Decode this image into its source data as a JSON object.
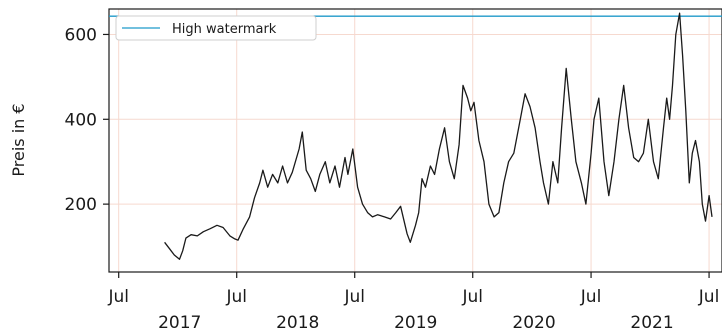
{
  "chart_data": {
    "type": "line",
    "ylabel": "Preis in €",
    "xlabel": "",
    "ylim": [
      40,
      660
    ],
    "xlim": [
      "2016-06-01",
      "2021-08-10"
    ],
    "grid": true,
    "legend_position": "top-left",
    "colors": {
      "price_line": "#1a1a1a",
      "watermark_line": "#1f9ac9",
      "grid": "#f6d9cf",
      "axes": "#1a1a1a"
    },
    "y_ticks": [
      {
        "value": 200,
        "label": "200"
      },
      {
        "value": 400,
        "label": "400"
      },
      {
        "value": 600,
        "label": "600"
      }
    ],
    "x_ticks": [
      {
        "date": "2016-07-01",
        "month": "Jul",
        "year": ""
      },
      {
        "date": "2017-07-01",
        "month": "Jul",
        "year": "2017"
      },
      {
        "date": "2018-07-01",
        "month": "Jul",
        "year": "2018"
      },
      {
        "date": "2019-07-01",
        "month": "Jul",
        "year": "2019"
      },
      {
        "date": "2020-07-01",
        "month": "Jul",
        "year": "2020"
      },
      {
        "date": "2021-07-01",
        "month": "Jul",
        "year": "2021"
      }
    ],
    "series": [
      {
        "name": "",
        "x": [
          "2016-11-20",
          "2016-12-05",
          "2016-12-20",
          "2017-01-05",
          "2017-01-15",
          "2017-01-25",
          "2017-02-10",
          "2017-03-01",
          "2017-03-20",
          "2017-04-10",
          "2017-05-01",
          "2017-05-20",
          "2017-06-10",
          "2017-06-25",
          "2017-07-05",
          "2017-07-20",
          "2017-08-10",
          "2017-08-25",
          "2017-09-10",
          "2017-09-20",
          "2017-10-05",
          "2017-10-20",
          "2017-11-05",
          "2017-11-20",
          "2017-12-05",
          "2017-12-20",
          "2018-01-10",
          "2018-01-20",
          "2018-02-01",
          "2018-02-15",
          "2018-03-01",
          "2018-03-15",
          "2018-04-01",
          "2018-04-15",
          "2018-05-01",
          "2018-05-15",
          "2018-06-01",
          "2018-06-10",
          "2018-06-25",
          "2018-07-10",
          "2018-07-25",
          "2018-08-10",
          "2018-08-25",
          "2018-09-10",
          "2018-10-01",
          "2018-10-20",
          "2018-11-05",
          "2018-11-20",
          "2018-12-10",
          "2018-12-20",
          "2019-01-05",
          "2019-01-15",
          "2019-01-25",
          "2019-02-05",
          "2019-02-20",
          "2019-03-05",
          "2019-03-20",
          "2019-04-05",
          "2019-04-20",
          "2019-05-05",
          "2019-05-20",
          "2019-06-01",
          "2019-06-15",
          "2019-06-25",
          "2019-07-05",
          "2019-07-20",
          "2019-08-05",
          "2019-08-20",
          "2019-09-05",
          "2019-09-20",
          "2019-10-05",
          "2019-10-20",
          "2019-11-05",
          "2019-11-25",
          "2019-12-10",
          "2019-12-25",
          "2020-01-10",
          "2020-01-25",
          "2020-02-05",
          "2020-02-20",
          "2020-03-05",
          "2020-03-20",
          "2020-04-01",
          "2020-04-15",
          "2020-05-01",
          "2020-05-15",
          "2020-06-01",
          "2020-06-15",
          "2020-07-01",
          "2020-07-10",
          "2020-07-25",
          "2020-08-10",
          "2020-08-25",
          "2020-09-10",
          "2020-09-25",
          "2020-10-10",
          "2020-10-25",
          "2020-11-10",
          "2020-11-25",
          "2020-12-10",
          "2020-12-25",
          "2021-01-10",
          "2021-01-25",
          "2021-02-10",
          "2021-02-20",
          "2021-03-01",
          "2021-03-10",
          "2021-03-20",
          "2021-04-01",
          "2021-04-10",
          "2021-04-20",
          "2021-05-01",
          "2021-05-10",
          "2021-05-20",
          "2021-06-01",
          "2021-06-10",
          "2021-06-20",
          "2021-07-01",
          "2021-07-10"
        ],
        "y": [
          110,
          95,
          80,
          70,
          90,
          120,
          128,
          125,
          135,
          142,
          150,
          145,
          125,
          118,
          115,
          140,
          170,
          215,
          250,
          280,
          240,
          270,
          250,
          290,
          250,
          275,
          330,
          370,
          280,
          260,
          230,
          270,
          300,
          250,
          290,
          240,
          310,
          270,
          330,
          240,
          200,
          180,
          170,
          175,
          170,
          165,
          180,
          195,
          130,
          110,
          150,
          180,
          260,
          240,
          290,
          270,
          330,
          380,
          300,
          260,
          340,
          480,
          450,
          420,
          440,
          350,
          300,
          200,
          170,
          180,
          250,
          300,
          320,
          400,
          460,
          430,
          380,
          300,
          250,
          200,
          300,
          250,
          380,
          520,
          400,
          300,
          250,
          200,
          320,
          400,
          450,
          300,
          220,
          300,
          400,
          480,
          380,
          310,
          300,
          320,
          400,
          300,
          260,
          380,
          450,
          400,
          480,
          600,
          650,
          550,
          420,
          250,
          320,
          350,
          300,
          200,
          160,
          220,
          170
        ]
      }
    ],
    "reference_line": {
      "name": "High watermark",
      "value": 643
    }
  }
}
